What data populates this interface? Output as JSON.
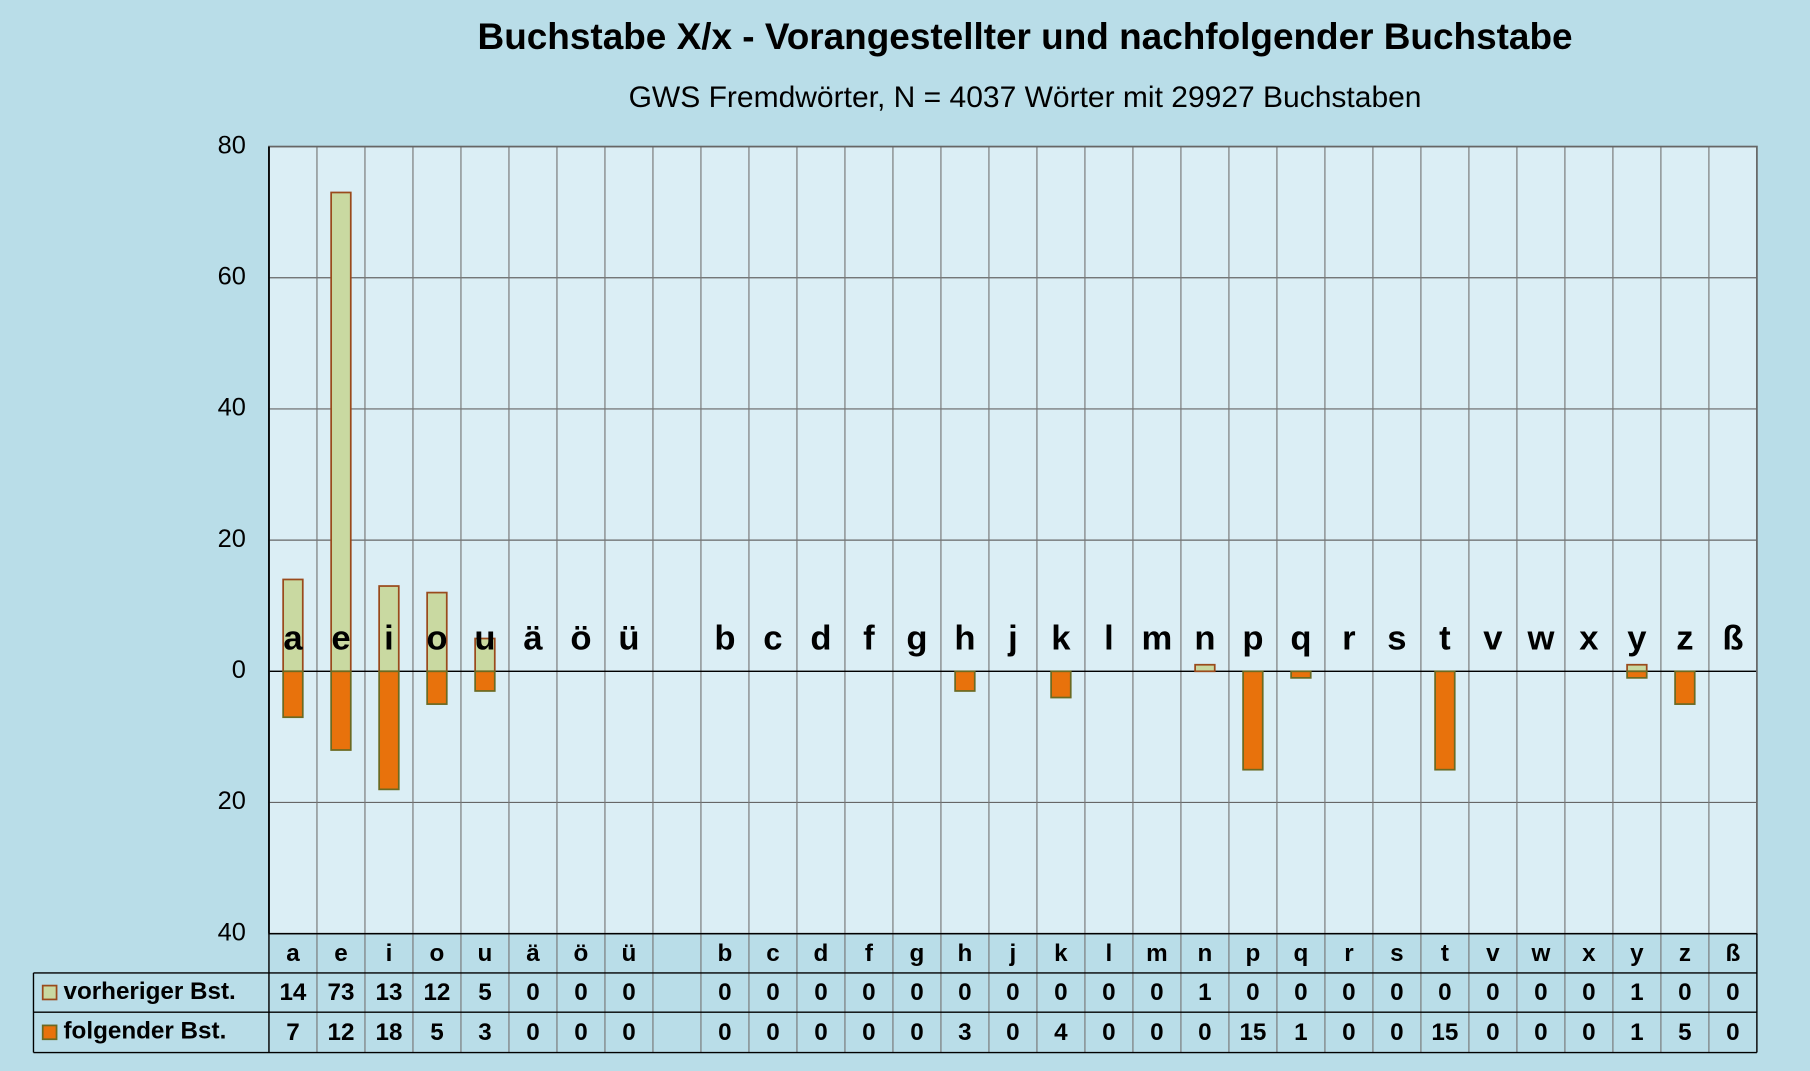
{
  "chart_data": {
    "type": "bar",
    "title": "Buchstabe X/x - Vorangestellter und nachfolgender Buchstabe",
    "subtitle": "GWS Fremdwörter,  N = 4037 Wörter mit 29927 Buchstaben",
    "categories": [
      "a",
      "e",
      "i",
      "o",
      "u",
      "ä",
      "ö",
      "ü",
      null,
      "b",
      "c",
      "d",
      "f",
      "g",
      "h",
      "j",
      "k",
      "l",
      "m",
      "n",
      "p",
      "q",
      "r",
      "s",
      "t",
      "v",
      "w",
      "x",
      "y",
      "z",
      "ß"
    ],
    "series": [
      {
        "name": "vorheriger Bst.",
        "color": "#c9d9a1",
        "edge": "#9a4a1c",
        "values": [
          14,
          73,
          13,
          12,
          5,
          0,
          0,
          0,
          null,
          0,
          0,
          0,
          0,
          0,
          0,
          0,
          0,
          0,
          0,
          1,
          0,
          0,
          0,
          0,
          0,
          0,
          0,
          0,
          1,
          0,
          0
        ]
      },
      {
        "name": "folgender Bst.",
        "color": "#e8720c",
        "edge": "#6b6a22",
        "values": [
          -7,
          -12,
          -18,
          -5,
          -3,
          0,
          0,
          0,
          null,
          0,
          0,
          0,
          0,
          0,
          -3,
          0,
          -4,
          0,
          0,
          0,
          -15,
          -1,
          0,
          0,
          -15,
          0,
          0,
          0,
          -1,
          -5,
          0
        ],
        "value_labels": [
          "7",
          "12",
          "18",
          "5",
          "3",
          "0",
          "0",
          "0",
          null,
          "0",
          "0",
          "0",
          "0",
          "0",
          "3",
          "0",
          "4",
          "0",
          "0",
          "0",
          "15",
          "1",
          "0",
          "0",
          "15",
          "0",
          "0",
          "0",
          "1",
          "5",
          "0"
        ]
      }
    ],
    "ylim": [
      -40,
      80
    ],
    "yticks": [
      {
        "value": -40,
        "label": "40"
      },
      {
        "value": -20,
        "label": "20"
      },
      0,
      20,
      40,
      60,
      80
    ],
    "negative_tick_color": "#e00000",
    "grid": true
  }
}
